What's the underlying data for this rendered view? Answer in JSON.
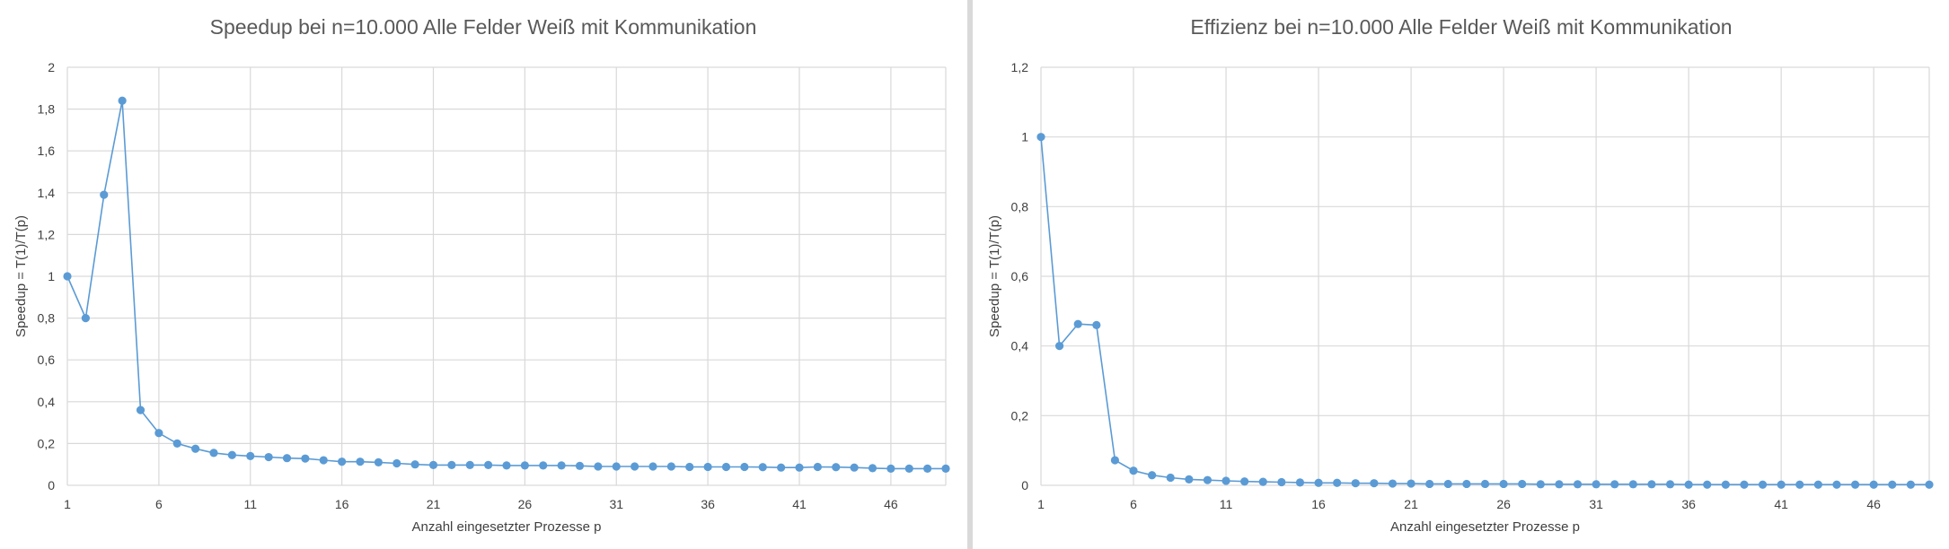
{
  "chart_data": [
    {
      "type": "line",
      "title": "Speedup bei n=10.000 Alle Felder Weiß mit Kommunikation",
      "xlabel": "Anzahl eingesetzter Prozesse p",
      "ylabel": "Speedup = T(1)/T(p)",
      "x_tick_labels": [
        "1",
        "6",
        "11",
        "16",
        "21",
        "26",
        "31",
        "36",
        "41",
        "46"
      ],
      "y_tick_labels": [
        "0",
        "0,2",
        "0,4",
        "0,6",
        "0,8",
        "1",
        "1,2",
        "1,4",
        "1,6",
        "1,8",
        "2"
      ],
      "xlim": [
        1,
        49
      ],
      "ylim": [
        0,
        2
      ],
      "grid": true,
      "series": [
        {
          "color": "#5b9bd5",
          "x": [
            1,
            2,
            3,
            4,
            5,
            6,
            7,
            8,
            9,
            10,
            11,
            12,
            13,
            14,
            15,
            16,
            17,
            18,
            19,
            20,
            21,
            22,
            23,
            24,
            25,
            26,
            27,
            28,
            29,
            30,
            31,
            32,
            33,
            34,
            35,
            36,
            37,
            38,
            39,
            40,
            41,
            42,
            43,
            44,
            45,
            46,
            47,
            48,
            49
          ],
          "y": [
            1.0,
            0.8,
            1.39,
            1.84,
            0.36,
            0.25,
            0.2,
            0.175,
            0.155,
            0.145,
            0.14,
            0.135,
            0.13,
            0.128,
            0.12,
            0.113,
            0.113,
            0.11,
            0.105,
            0.1,
            0.097,
            0.097,
            0.097,
            0.097,
            0.095,
            0.095,
            0.095,
            0.095,
            0.093,
            0.09,
            0.09,
            0.09,
            0.09,
            0.09,
            0.088,
            0.088,
            0.088,
            0.088,
            0.087,
            0.085,
            0.085,
            0.088,
            0.087,
            0.085,
            0.082,
            0.08,
            0.08,
            0.08,
            0.08
          ]
        }
      ]
    },
    {
      "type": "line",
      "title": "Effizienz bei n=10.000 Alle Felder Weiß mit Kommunikation",
      "xlabel": "Anzahl eingesetzter Prozesse p",
      "ylabel": "Speedup = T(1)/T(p)",
      "x_tick_labels": [
        "1",
        "6",
        "11",
        "16",
        "21",
        "26",
        "31",
        "36",
        "41",
        "46"
      ],
      "y_tick_labels": [
        "0",
        "0,2",
        "0,4",
        "0,6",
        "0,8",
        "1",
        "1,2"
      ],
      "xlim": [
        1,
        49
      ],
      "ylim": [
        0,
        1.2
      ],
      "grid": true,
      "series": [
        {
          "color": "#5b9bd5",
          "x": [
            1,
            2,
            3,
            4,
            5,
            6,
            7,
            8,
            9,
            10,
            11,
            12,
            13,
            14,
            15,
            16,
            17,
            18,
            19,
            20,
            21,
            22,
            23,
            24,
            25,
            26,
            27,
            28,
            29,
            30,
            31,
            32,
            33,
            34,
            35,
            36,
            37,
            38,
            39,
            40,
            41,
            42,
            43,
            44,
            45,
            46,
            47,
            48,
            49
          ],
          "y": [
            1.0,
            0.4,
            0.463,
            0.46,
            0.072,
            0.042,
            0.029,
            0.022,
            0.017,
            0.015,
            0.013,
            0.011,
            0.01,
            0.009,
            0.008,
            0.007,
            0.007,
            0.006,
            0.006,
            0.005,
            0.005,
            0.004,
            0.004,
            0.004,
            0.004,
            0.004,
            0.004,
            0.003,
            0.003,
            0.003,
            0.003,
            0.003,
            0.003,
            0.003,
            0.003,
            0.002,
            0.002,
            0.002,
            0.002,
            0.002,
            0.002,
            0.002,
            0.002,
            0.002,
            0.002,
            0.002,
            0.002,
            0.002,
            0.002
          ]
        }
      ]
    }
  ]
}
